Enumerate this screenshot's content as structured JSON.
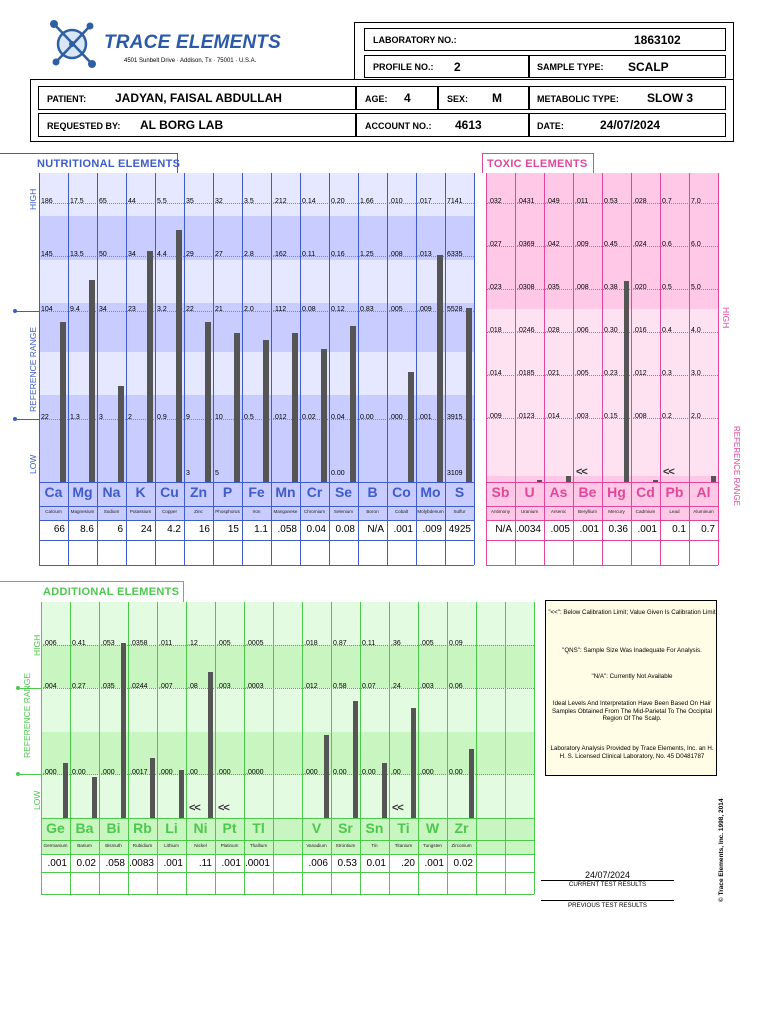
{
  "header": {
    "logo_text": "TRACE ELEMENTS",
    "address": "4501 Sunbelt Drive · Addison, Tx · 75001 · U.S.A.",
    "lab_no_label": "LABORATORY NO.:",
    "lab_no": "1863102",
    "profile_label": "PROFILE NO.:",
    "profile_no": "2",
    "sample_label": "SAMPLE TYPE:",
    "sample_type": "SCALP",
    "patient_label": "PATIENT:",
    "patient": "JADYAN, FAISAL ABDULLAH",
    "age_label": "AGE:",
    "age": "4",
    "sex_label": "SEX:",
    "sex": "M",
    "metabolic_label": "METABOLIC TYPE:",
    "metabolic": "SLOW 3",
    "requested_label": "REQUESTED BY:",
    "requested": "AL BORG LAB",
    "account_label": "ACCOUNT NO.:",
    "account": "4613",
    "date_label": "DATE:",
    "date": "24/07/2024"
  },
  "nutritional": {
    "title": "NUTRITIONAL  ELEMENTS",
    "axis_high": "HIGH",
    "axis_ref": "REFERENCE   RANGE",
    "axis_low": "LOW",
    "colors": {
      "text": "#3f5cc9",
      "bg": "#c8ccff",
      "band": "#e6e8ff"
    },
    "elements": [
      {
        "sym": "Ca",
        "name": "Calcium",
        "result": "66",
        "ticks": [
          "186",
          "145",
          "104",
          "22"
        ],
        "low": "",
        "level": 0.7
      },
      {
        "sym": "Mg",
        "name": "Magnesium",
        "result": "8.6",
        "ticks": [
          "17.5",
          "13.5",
          "9.4",
          "1.3"
        ],
        "low": "",
        "level": 0.88
      },
      {
        "sym": "Na",
        "name": "Sodium",
        "result": "6",
        "ticks": [
          "65",
          "50",
          "34",
          "3"
        ],
        "low": "",
        "level": 0.42
      },
      {
        "sym": "K",
        "name": "Potassium",
        "result": "24",
        "ticks": [
          "44",
          "34",
          "23",
          "2"
        ],
        "low": "",
        "level": 1.01
      },
      {
        "sym": "Cu",
        "name": "Copper",
        "result": "4.2",
        "ticks": [
          "5.5",
          "4.4",
          "3.2",
          "0.9"
        ],
        "low": "",
        "level": 1.3
      },
      {
        "sym": "Zn",
        "name": "Zinc",
        "result": "16",
        "ticks": [
          "35",
          "29",
          "22",
          "9"
        ],
        "low": "3",
        "level": 0.7
      },
      {
        "sym": "P",
        "name": "Phosphorus",
        "result": "15",
        "ticks": [
          "32",
          "27",
          "21",
          "10"
        ],
        "low": "5",
        "level": 0.65
      },
      {
        "sym": "Fe",
        "name": "Iron",
        "result": "1.1",
        "ticks": [
          "3.5",
          "2.8",
          "2.0",
          "0.5"
        ],
        "low": "",
        "level": 0.62
      },
      {
        "sym": "Mn",
        "name": "Manganese",
        "result": ".058",
        "ticks": [
          ".212",
          ".162",
          ".112",
          ".012"
        ],
        "low": "",
        "level": 0.65
      },
      {
        "sym": "Cr",
        "name": "Chromium",
        "result": "0.04",
        "ticks": [
          "0.14",
          "0.11",
          "0.08",
          "0.02"
        ],
        "low": "",
        "level": 0.58
      },
      {
        "sym": "Se",
        "name": "Selenium",
        "result": "0.08",
        "ticks": [
          "0.20",
          "0.16",
          "0.12",
          "0.04"
        ],
        "low": "0.00",
        "level": 0.68
      },
      {
        "sym": "B",
        "name": "Boron",
        "result": "N/A",
        "ticks": [
          "1.66",
          "1.25",
          "0.83",
          "0.00"
        ],
        "low": "",
        "level": 0
      },
      {
        "sym": "Co",
        "name": "Cobalt",
        "result": ".001",
        "ticks": [
          ".010",
          ".008",
          ".005",
          ".000"
        ],
        "low": "",
        "level": 0.48
      },
      {
        "sym": "Mo",
        "name": "Molybdenum",
        "result": ".009",
        "ticks": [
          ".017",
          ".013",
          ".009",
          ".001"
        ],
        "low": "",
        "level": 0.99
      },
      {
        "sym": "S",
        "name": "Sulfur",
        "result": "4925",
        "ticks": [
          "7141",
          "6335",
          "5528",
          "3915"
        ],
        "low": "3109",
        "level": 0.76
      }
    ]
  },
  "toxic": {
    "title": "TOXIC  ELEMENTS",
    "axis_high": "HIGH",
    "axis_ref": "REFERENCE RANGE",
    "colors": {
      "text": "#e0479a",
      "bg": "#ffc8e6",
      "band": "#ffe2f1"
    },
    "elements": [
      {
        "sym": "Sb",
        "name": "Antimony",
        "result": "N/A",
        "ticks": [
          ".032",
          ".027",
          ".023",
          ".018",
          ".014",
          ".009"
        ],
        "level": 0,
        "mark": ""
      },
      {
        "sym": "U",
        "name": "Uranium",
        "result": ".0034",
        "ticks": [
          ".0431",
          ".0369",
          ".0308",
          ".0246",
          ".0185",
          ".0123"
        ],
        "level": 0.005,
        "mark": ""
      },
      {
        "sym": "As",
        "name": "Arsenic",
        "result": ".005",
        "ticks": [
          ".049",
          ".042",
          ".035",
          ".028",
          ".021",
          ".014"
        ],
        "level": 0.02,
        "mark": ""
      },
      {
        "sym": "Be",
        "name": "Beryllium",
        "result": ".001",
        "ticks": [
          ".011",
          ".009",
          ".008",
          ".006",
          ".005",
          ".003"
        ],
        "level": 0,
        "mark": "<<"
      },
      {
        "sym": "Hg",
        "name": "Mercury",
        "result": "0.36",
        "ticks": [
          "0.53",
          "0.45",
          "0.38",
          "0.30",
          "0.23",
          "0.15"
        ],
        "level": 0.65,
        "mark": ""
      },
      {
        "sym": "Cd",
        "name": "Cadmium",
        "result": ".001",
        "ticks": [
          ".028",
          ".024",
          ".020",
          ".016",
          ".012",
          ".008"
        ],
        "level": 0.005,
        "mark": ""
      },
      {
        "sym": "Pb",
        "name": "Lead",
        "result": "0.1",
        "ticks": [
          "0.7",
          "0.6",
          "0.5",
          "0.4",
          "0.3",
          "0.2"
        ],
        "level": 0,
        "mark": "<<"
      },
      {
        "sym": "Al",
        "name": "Aluminum",
        "result": "0.7",
        "ticks": [
          "7.0",
          "6.0",
          "5.0",
          "4.0",
          "3.0",
          "2.0"
        ],
        "level": 0.02,
        "mark": ""
      }
    ]
  },
  "additional": {
    "title": "ADDITIONAL  ELEMENTS",
    "axis_high": "HIGH",
    "axis_ref": "REFERENCE   RANGE",
    "axis_low": "LOW",
    "colors": {
      "text": "#4cc94c",
      "bg": "#c8f5c0",
      "band": "#e3fbe0"
    },
    "elements": [
      {
        "sym": "Ge",
        "name": "Germanium",
        "result": ".001",
        "ticks": [
          ".006",
          ".004",
          ".000"
        ],
        "level": 0.32,
        "mark": ""
      },
      {
        "sym": "Ba",
        "name": "Barium",
        "result": "0.02",
        "ticks": [
          "0.41",
          "0.27",
          "0.00"
        ],
        "level": 0.24,
        "mark": ""
      },
      {
        "sym": "Bi",
        "name": "Bismuth",
        "result": ".058",
        "ticks": [
          ".053",
          ".035",
          ".000"
        ],
        "level": 1.02,
        "mark": ""
      },
      {
        "sym": "Rb",
        "name": "Rubidium",
        "result": ".0083",
        "ticks": [
          ".0358",
          ".0244",
          ".0017"
        ],
        "level": 0.35,
        "mark": ""
      },
      {
        "sym": "Li",
        "name": "Lithium",
        "result": ".001",
        "ticks": [
          ".011",
          ".007",
          ".000"
        ],
        "level": 0.28,
        "mark": ""
      },
      {
        "sym": "Ni",
        "name": "Nickel",
        "result": ".11",
        "ticks": [
          ".12",
          ".08",
          ".00"
        ],
        "level": 0.85,
        "mark": "<<"
      },
      {
        "sym": "Pt",
        "name": "Platinum",
        "result": ".001",
        "ticks": [
          ".005",
          ".003",
          ".000"
        ],
        "level": 0,
        "mark": "<<"
      },
      {
        "sym": "Tl",
        "name": "Thallium",
        "result": ".0001",
        "ticks": [
          ".0005",
          ".0003",
          ".0000"
        ],
        "level": 0,
        "mark": ""
      },
      {
        "sym": "",
        "name": "",
        "result": "",
        "ticks": [
          "",
          "",
          ""
        ],
        "level": 0,
        "mark": ""
      },
      {
        "sym": "V",
        "name": "Vanadium",
        "result": ".006",
        "ticks": [
          ".018",
          ".012",
          ".000"
        ],
        "level": 0.48,
        "mark": ""
      },
      {
        "sym": "Sr",
        "name": "Strontium",
        "result": "0.53",
        "ticks": [
          "0.87",
          "0.58",
          "0.00"
        ],
        "level": 0.68,
        "mark": ""
      },
      {
        "sym": "Sn",
        "name": "Tin",
        "result": "0.01",
        "ticks": [
          "0.11",
          "0.07",
          "0.00"
        ],
        "level": 0.32,
        "mark": ""
      },
      {
        "sym": "Ti",
        "name": "Titanium",
        "result": ".20",
        "ticks": [
          ".36",
          ".24",
          ".00"
        ],
        "level": 0.64,
        "mark": "<<"
      },
      {
        "sym": "W",
        "name": "Tungsten",
        "result": ".001",
        "ticks": [
          ".005",
          ".003",
          ".000"
        ],
        "level": 0,
        "mark": ""
      },
      {
        "sym": "Zr",
        "name": "Zirconium",
        "result": "0.02",
        "ticks": [
          "0.09",
          "0.06",
          "0.00"
        ],
        "level": 0.4,
        "mark": ""
      },
      {
        "sym": "",
        "name": "",
        "result": "",
        "ticks": [
          "",
          "",
          ""
        ],
        "level": 0,
        "mark": ""
      },
      {
        "sym": "",
        "name": "",
        "result": "",
        "ticks": [
          "",
          "",
          ""
        ],
        "level": 0,
        "mark": ""
      }
    ]
  },
  "legend": {
    "item1": "\"<<\": Below Calibration Limit; Value Given Is Calibration Limit",
    "item2": "\"QNS\": Sample Size Was Inadequate For Analysis.",
    "item3": "\"N/A\": Currently Not Available",
    "item4": "Ideal Levels And Interpretation Have Been Based On Hair Samples Obtained From The Mid-Parietal To The Occipital Region Of The Scalp.",
    "item5": "Laboratory Analysis Provided by Trace Elements, Inc. an H. H. S. Licensed Clinical Laboratory,  No. 45 D0481787"
  },
  "footer": {
    "current_date": "24/07/2024",
    "current_label": "CURRENT  TEST  RESULTS",
    "previous_label": "PREVIOUS  TEST  RESULTS",
    "copyright": "© Trace Elements, Inc. 1998, 2014"
  }
}
